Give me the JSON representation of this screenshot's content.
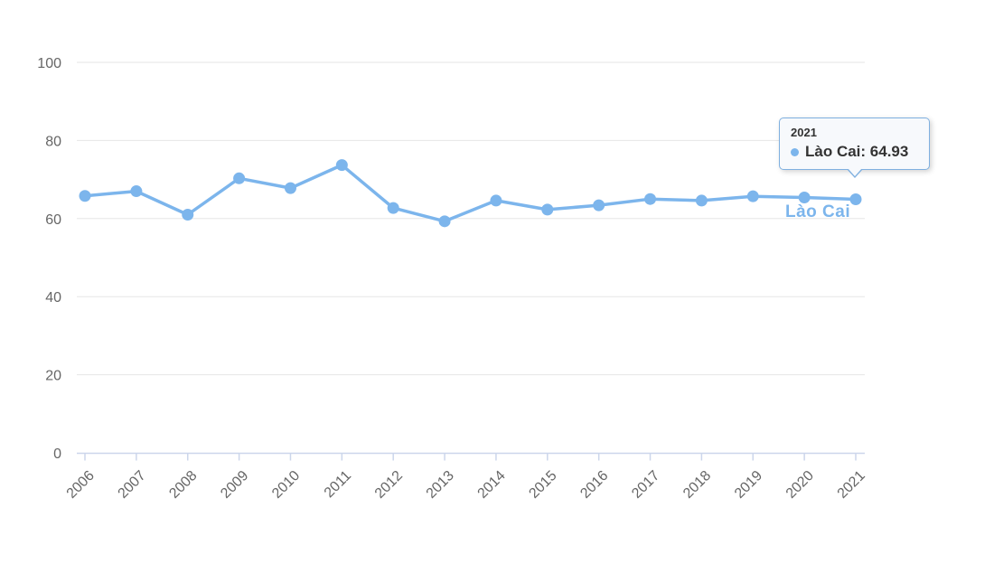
{
  "chart_data": {
    "type": "line",
    "title": "",
    "xlabel": "",
    "ylabel": "",
    "x_labels": [
      "2006",
      "2007",
      "2008",
      "2009",
      "2010",
      "2011",
      "2012",
      "2013",
      "2014",
      "2015",
      "2016",
      "2017",
      "2018",
      "2019",
      "2020",
      "2021"
    ],
    "series": [
      {
        "name": "Lào Cai",
        "values": [
          65.8,
          67.0,
          61.0,
          70.3,
          67.8,
          73.7,
          62.7,
          59.3,
          64.6,
          62.3,
          63.4,
          65.0,
          64.6,
          65.7,
          65.4,
          64.93
        ]
      }
    ],
    "ylim": [
      0,
      100
    ],
    "yticks": [
      0,
      20,
      40,
      60,
      80,
      100
    ],
    "grid": true,
    "legend": false,
    "series_label": "Lào Cai",
    "highlighted_point": {
      "x_label": "2021",
      "value": 64.93
    }
  },
  "tooltip": {
    "header": "2021",
    "series_name": "Lào Cai",
    "separator": ": ",
    "value": "64.93"
  },
  "colors": {
    "series": "#7cb5ec",
    "grid": "#e6e6e6",
    "axis_line": "#ccd6eb",
    "axis_label": "#666666",
    "tooltip_bg": "#f7f9fc",
    "tooltip_border": "#7fb0e0",
    "tooltip_text": "#333333",
    "background": "#ffffff"
  }
}
